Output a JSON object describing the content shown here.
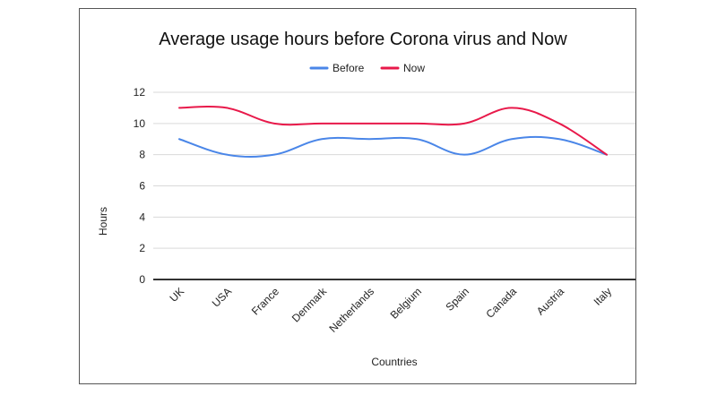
{
  "chart_data": {
    "type": "line",
    "title": "Average usage hours before Corona virus and Now",
    "xlabel": "Countries",
    "ylabel": "Hours",
    "ylim": [
      0,
      12
    ],
    "yticks": [
      0,
      2,
      4,
      6,
      8,
      10,
      12
    ],
    "grid": true,
    "legend_position": "top",
    "categories": [
      "UK",
      "USA",
      "France",
      "Denmark",
      "Netherlands",
      "Belgium",
      "Spain",
      "Canada",
      "Austria",
      "Italy"
    ],
    "series": [
      {
        "name": "Before",
        "color": "#4a86e8",
        "values": [
          9,
          8,
          8,
          9,
          9,
          9,
          8,
          9,
          9,
          8
        ]
      },
      {
        "name": "Now",
        "color": "#e8194a",
        "values": [
          11,
          11,
          10,
          10,
          10,
          10,
          10,
          11,
          10,
          8
        ]
      }
    ]
  }
}
